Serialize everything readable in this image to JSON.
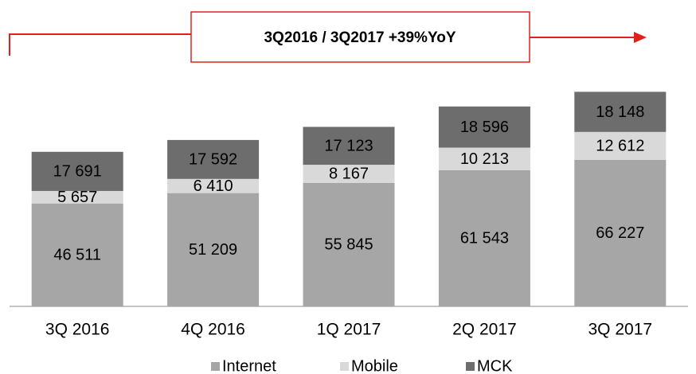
{
  "chart_data": {
    "type": "stacked_bar",
    "annotation": "3Q2016 / 3Q2017 +39%YoY",
    "categories": [
      "3Q 2016",
      "4Q 2016",
      "1Q 2017",
      "2Q 2017",
      "3Q 2017"
    ],
    "series": [
      {
        "name": "Internet",
        "color": "#a6a6a6",
        "values": [
          46511,
          51209,
          55845,
          61543,
          66227
        ],
        "value_labels": [
          "46 511",
          "51 209",
          "55 845",
          "61 543",
          "66 227"
        ]
      },
      {
        "name": "Mobile",
        "color": "#d9d9d9",
        "values": [
          5657,
          6410,
          8167,
          10213,
          12612
        ],
        "value_labels": [
          "5 657",
          "6 410",
          "8 167",
          "10 213",
          "12 612"
        ]
      },
      {
        "name": "MCK",
        "color": "#6d6d6d",
        "values": [
          17691,
          17592,
          17123,
          18596,
          18148
        ],
        "value_labels": [
          "17 691",
          "17 592",
          "17 123",
          "18 596",
          "18 148"
        ]
      }
    ],
    "ylim": [
      0,
      100000
    ]
  }
}
